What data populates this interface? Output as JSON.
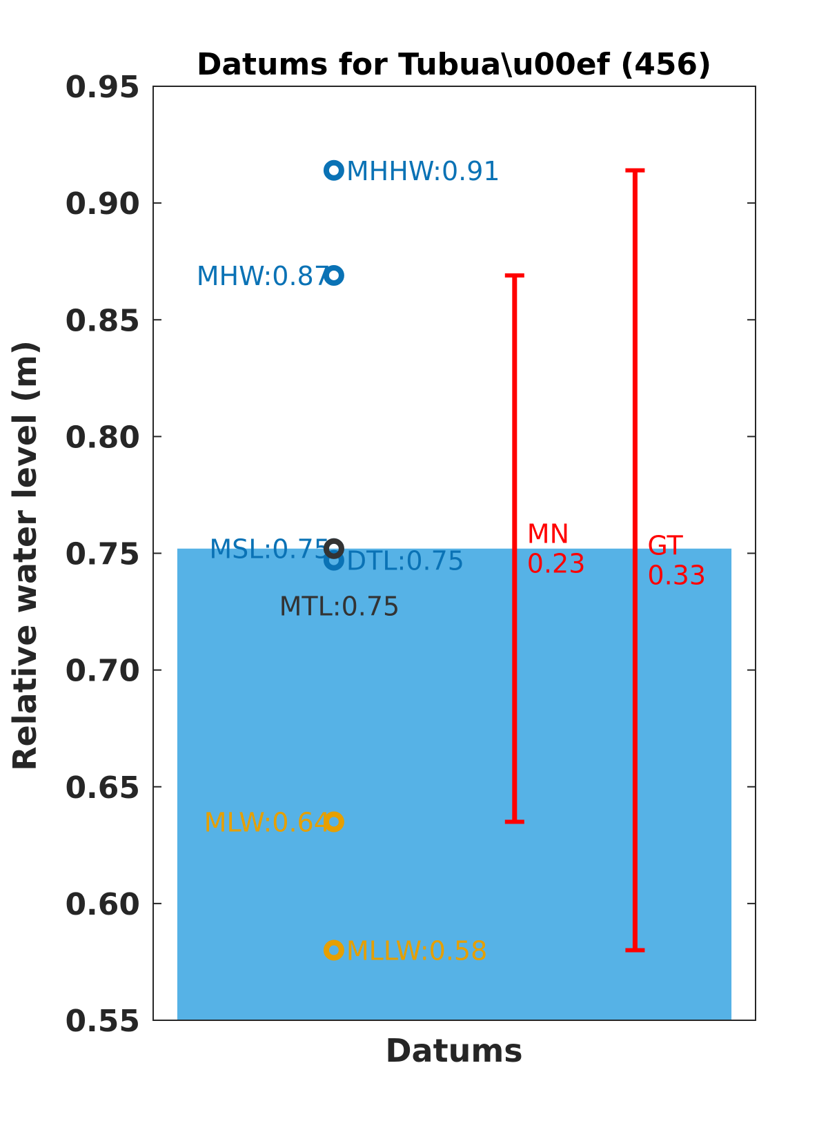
{
  "chart_data": {
    "type": "scatter",
    "title": "Datums for Tubua\\u00ef  (456)",
    "xlabel": "Datums",
    "ylabel": "Relative water level (m)",
    "ylim": [
      0.55,
      0.95
    ],
    "yticks": [
      0.55,
      0.6,
      0.65,
      0.7,
      0.75,
      0.8,
      0.85,
      0.9,
      0.95
    ],
    "ytick_labels": [
      "0.55",
      "0.60",
      "0.65",
      "0.70",
      "0.75",
      "0.80",
      "0.85",
      "0.90",
      "0.95"
    ],
    "grid": false,
    "background_bar": {
      "value": 0.752,
      "color": "#56B2E6"
    },
    "datums": [
      {
        "name": "MHHW",
        "value": 0.914,
        "label": "MHHW:0.91",
        "color": "#0A72B5",
        "label_side": "right"
      },
      {
        "name": "MHW",
        "value": 0.869,
        "label": "MHW:0.87",
        "color": "#0A72B5",
        "label_side": "left"
      },
      {
        "name": "MSL",
        "value": 0.752,
        "label": "MSL:0.75",
        "color": "#0A72B5",
        "label_side": "left"
      },
      {
        "name": "DTL",
        "value": 0.747,
        "label": "DTL:0.75",
        "color": "#0A72B5",
        "label_side": "right"
      },
      {
        "name": "MTL",
        "value": 0.752,
        "label": "MTL:0.75",
        "color": "#333333",
        "label_side": "below"
      },
      {
        "name": "MLW",
        "value": 0.635,
        "label": "MLW:0.64",
        "color": "#E69F00",
        "label_side": "left"
      },
      {
        "name": "MLLW",
        "value": 0.58,
        "label": "MLLW:0.58",
        "color": "#E69F00",
        "label_side": "right"
      }
    ],
    "ranges": [
      {
        "name": "MN",
        "low": 0.635,
        "high": 0.869,
        "label_name": "MN",
        "label_value": "0.23",
        "color": "#FF0000"
      },
      {
        "name": "GT",
        "low": 0.58,
        "high": 0.914,
        "label_name": "GT",
        "label_value": "0.33",
        "color": "#FF0000"
      }
    ]
  }
}
